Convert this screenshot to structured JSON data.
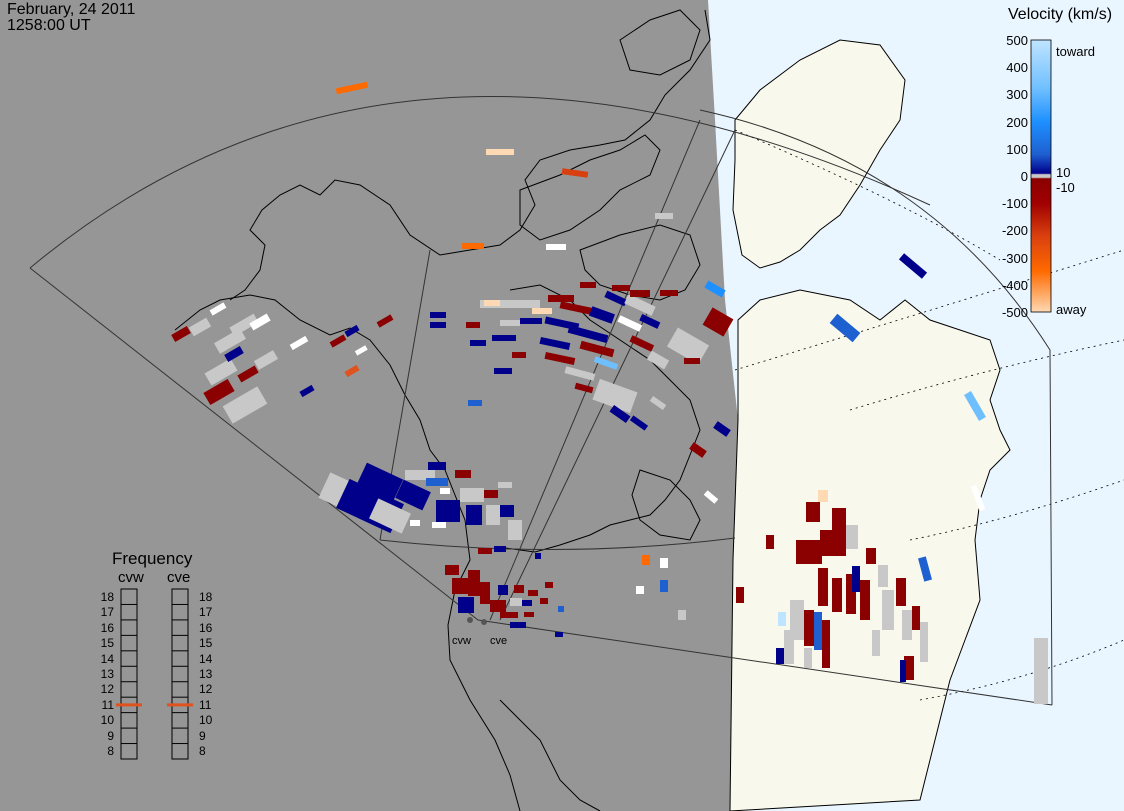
{
  "header": {
    "date": "February, 24 2011",
    "time": "1258:00 UT"
  },
  "colorbar": {
    "title": "Velocity (km/s)",
    "ticks": [
      "500",
      "400",
      "300",
      "200",
      "100",
      "0",
      "-100",
      "-200",
      "-300",
      "-400",
      "-500"
    ],
    "toward_label": "toward",
    "away_label": "away",
    "pos_threshold": "10",
    "neg_threshold": "-10",
    "colors": {
      "toward_max": "#bfe4ff",
      "toward_mid": "#1e90ff",
      "toward_low": "#00008b",
      "ground_scatter": "#c8c8c8",
      "away_low": "#8b0000",
      "away_mid": "#ff6a00",
      "away_max": "#ffd9b3"
    }
  },
  "frequency_panel": {
    "title": "Frequency",
    "radars": [
      {
        "name": "cvw",
        "value_mhz": 11
      },
      {
        "name": "cve",
        "value_mhz": 11
      }
    ],
    "ticks": [
      "18",
      "17",
      "16",
      "15",
      "14",
      "13",
      "12",
      "11",
      "10",
      "9",
      "8"
    ],
    "marker_color": "#e0521e"
  },
  "sites": [
    {
      "name": "cvw"
    },
    {
      "name": "cve"
    }
  ],
  "map": {
    "night_color": "#969696",
    "day_land_color": "#f8f8ec",
    "day_ocean_color": "#eaf6ff",
    "coast_color": "#000000"
  }
}
